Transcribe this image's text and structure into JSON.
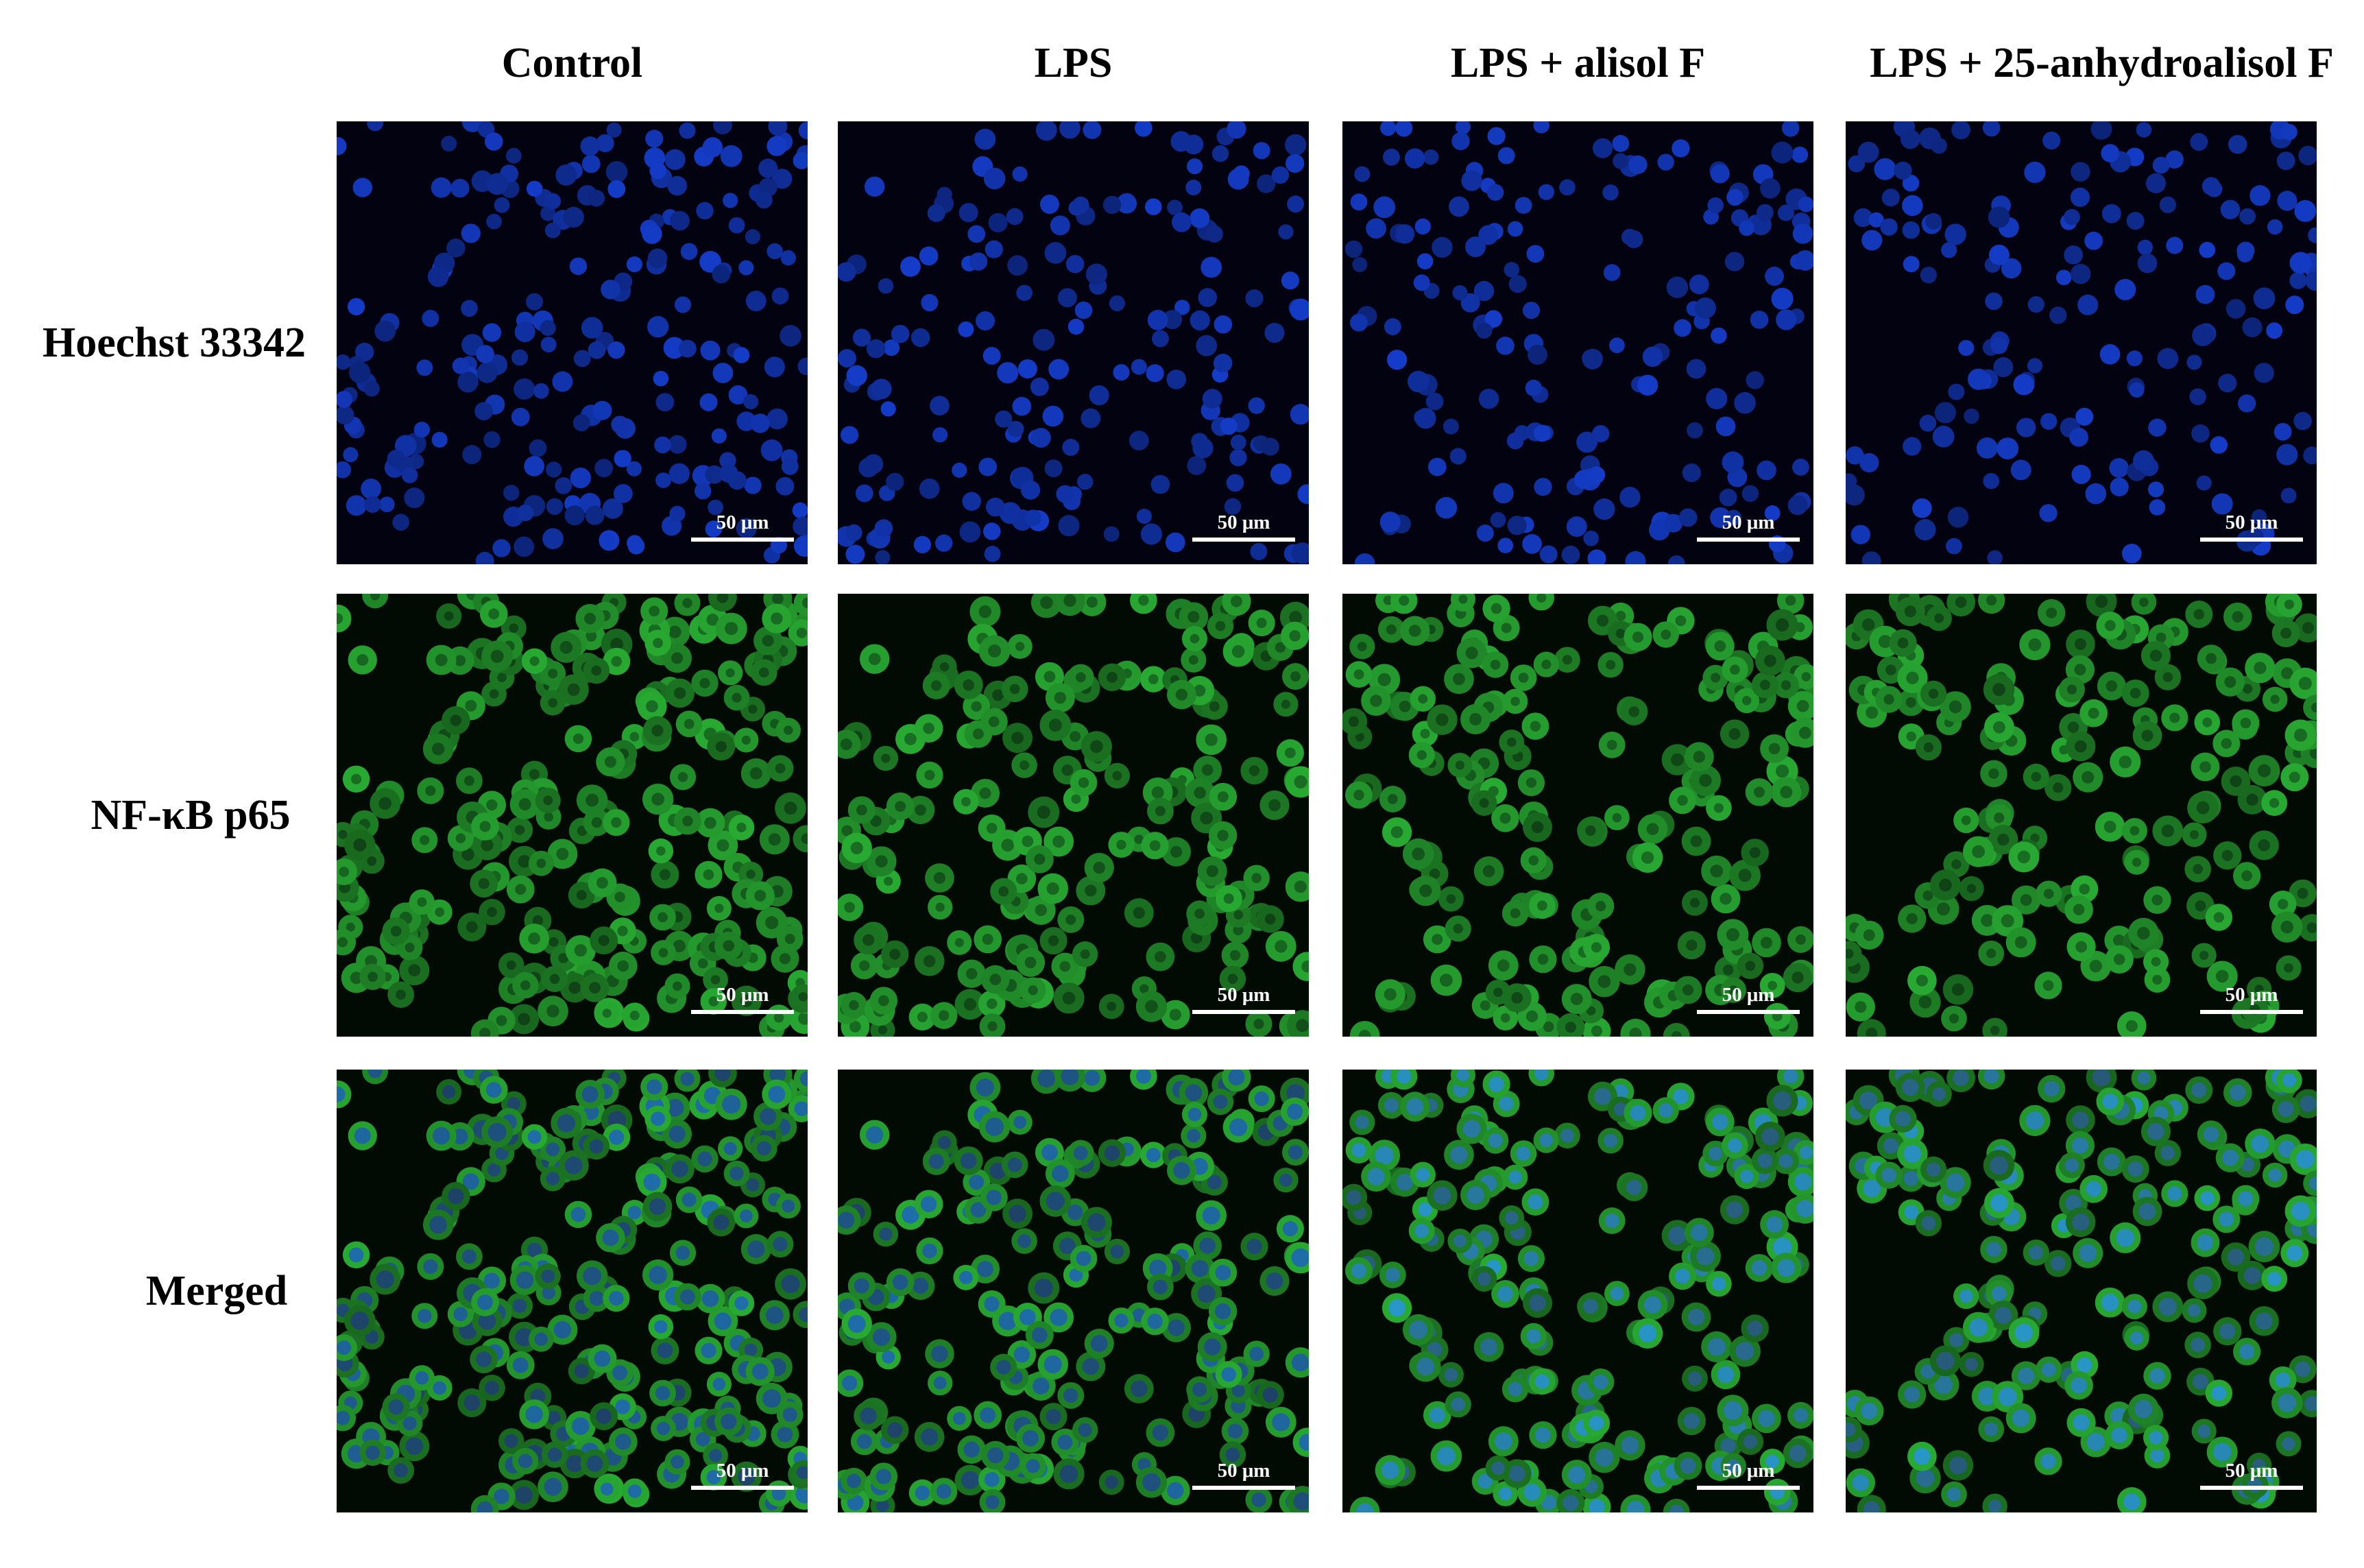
{
  "columns": [
    "Control",
    "LPS",
    "LPS + alisol F",
    "LPS + 25-anhydroalisol F"
  ],
  "rows": [
    "Hoechst 33342",
    "NF-κB p65",
    "Merged"
  ],
  "scale_bars": [
    [
      "50 μm",
      "50 μm",
      "50 μm",
      "50 μm"
    ],
    [
      "50 μm",
      "50 μm",
      "50 μm",
      "50 μm"
    ],
    [
      "50 μm",
      "50 μm",
      "50 μm",
      "50 μm"
    ]
  ]
}
